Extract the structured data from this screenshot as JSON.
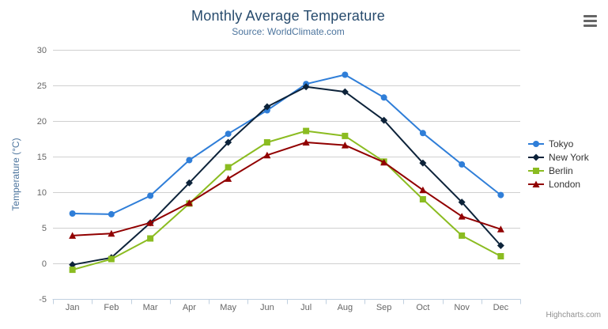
{
  "header": {
    "title": "Monthly Average Temperature",
    "subtitle": "Source: WorldClimate.com"
  },
  "chart_data": {
    "type": "line",
    "title": "Monthly Average Temperature",
    "subtitle": "Source: WorldClimate.com",
    "categories": [
      "Jan",
      "Feb",
      "Mar",
      "Apr",
      "May",
      "Jun",
      "Jul",
      "Aug",
      "Sep",
      "Oct",
      "Nov",
      "Dec"
    ],
    "xlabel": "",
    "ylabel": "Temperature (°C)",
    "ylim": [
      -5,
      30
    ],
    "yticks": [
      -5,
      0,
      5,
      10,
      15,
      20,
      25,
      30
    ],
    "grid": true,
    "legend_position": "right-middle",
    "series": [
      {
        "name": "Tokyo",
        "color": "#2f7ed8",
        "marker": "circle",
        "values": [
          7.0,
          6.9,
          9.5,
          14.5,
          18.2,
          21.5,
          25.2,
          26.5,
          23.3,
          18.3,
          13.9,
          9.6
        ]
      },
      {
        "name": "New York",
        "color": "#0d233a",
        "marker": "diamond",
        "values": [
          -0.2,
          0.8,
          5.7,
          11.3,
          17.0,
          22.0,
          24.8,
          24.1,
          20.1,
          14.1,
          8.6,
          2.5
        ]
      },
      {
        "name": "Berlin",
        "color": "#8bbc21",
        "marker": "square",
        "values": [
          -0.9,
          0.6,
          3.5,
          8.4,
          13.5,
          17.0,
          18.6,
          17.9,
          14.3,
          9.0,
          3.9,
          1.0
        ]
      },
      {
        "name": "London",
        "color": "#910000",
        "marker": "triangle",
        "values": [
          3.9,
          4.2,
          5.7,
          8.5,
          11.9,
          15.2,
          17.0,
          16.6,
          14.2,
          10.3,
          6.6,
          4.8
        ]
      }
    ]
  },
  "credits": {
    "label": "Highcharts.com"
  },
  "colors": {
    "title": "#274b6d",
    "subtitle": "#4d759e",
    "axis_title": "#4d759e",
    "axis_label": "#666666",
    "grid_line": "#d0d0d0",
    "axis_line": "#c0d0e0",
    "legend_text": "#333333",
    "credits_text": "#909090",
    "export_icon": "#666666"
  }
}
